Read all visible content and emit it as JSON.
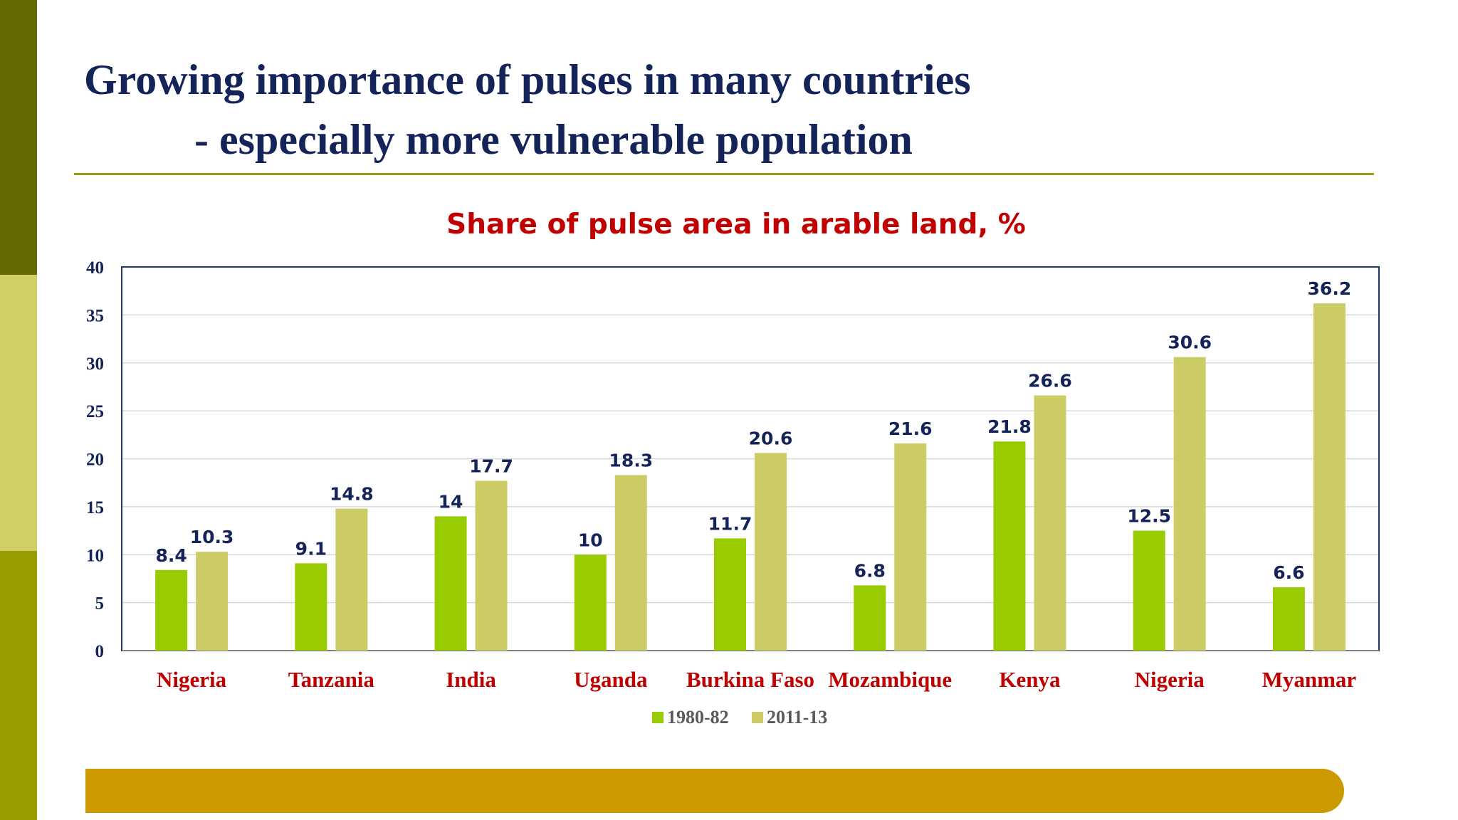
{
  "slide": {
    "title_line1": "Growing importance of pulses in many countries",
    "title_line2": "- especially more vulnerable population"
  },
  "colors": {
    "title": "#142458",
    "chart_title": "#c00000",
    "series_1980": "#99cc00",
    "series_2011": "#cccc66",
    "value_labels": "#142458",
    "category_labels": "#c00000"
  },
  "chart_data": {
    "type": "bar",
    "title": "Share of pulse area in arable land, %",
    "categories": [
      "Nigeria",
      "Tanzania",
      "India",
      "Uganda",
      "Burkina Faso",
      "Mozambique",
      "Kenya",
      "Nigeria",
      "Myanmar"
    ],
    "series": [
      {
        "name": "1980-82",
        "values": [
          8.4,
          9.1,
          14,
          10,
          11.7,
          6.8,
          21.8,
          12.5,
          6.6
        ],
        "color": "#99cc00"
      },
      {
        "name": "2011-13",
        "values": [
          10.3,
          14.8,
          17.7,
          18.3,
          20.6,
          21.6,
          26.6,
          30.6,
          36.2
        ],
        "color": "#cccc66"
      }
    ],
    "ylim": [
      0,
      40
    ],
    "yticks": [
      0,
      5,
      10,
      15,
      20,
      25,
      30,
      35,
      40
    ],
    "grid": true,
    "data_labels": true,
    "legend_position": "bottom"
  }
}
